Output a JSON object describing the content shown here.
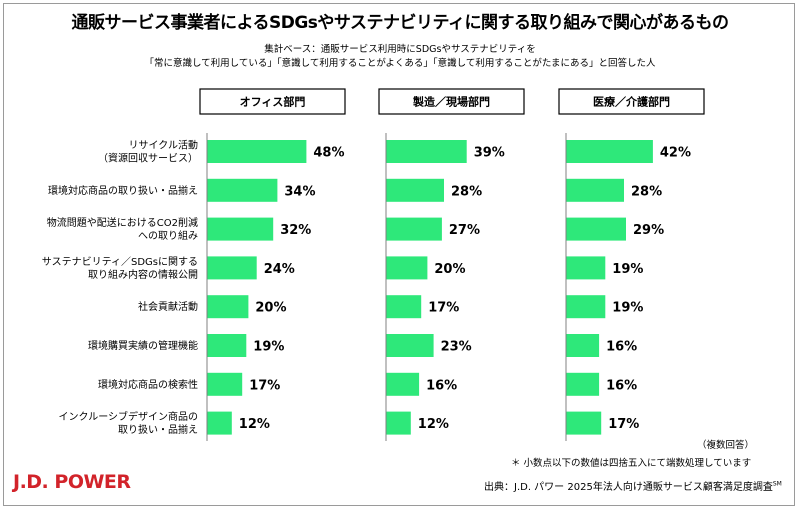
{
  "title": "通販サービス事業者によるSDGsやサステナビリティに関する取り組みで関心があるもの",
  "subtitle_line1": "集計ベース：通販サービス利用時にSDGsやサステナビリティを",
  "subtitle_line2": "「常に意識して利用している」「意識して利用することがよくある」「意識して利用することがたまにある」と回答した人",
  "multi_answer_note": "（複数回答）",
  "rounding_note": "＊ 小数点以下の数値は四捨五入にて端数処理しています",
  "source_prefix": "出典：J.D. パワー 2025年法人向け通販サービス顧客満足度調査",
  "source_sup": "SM",
  "logo_text": "J.D. POWER",
  "colors": {
    "bar": "#2ee87a",
    "logo": "#d2232a",
    "axis": "#808080"
  },
  "chart_data": [
    {
      "type": "bar",
      "orientation": "horizontal",
      "title": "オフィス部門",
      "categories": [
        "リサイクル活動\n（資源回収サービス）",
        "環境対応商品の取り扱い・品揃え",
        "物流問題や配送におけるCO2削減\nへの取り組み",
        "サステナビリティ／SDGsに関する\n取り組み内容の情報公開",
        "社会貢献活動",
        "環境購買実績の管理機能",
        "環境対応商品の検索性",
        "インクルーシブデザイン商品の\n取り扱い・品揃え"
      ],
      "values": [
        48,
        34,
        32,
        24,
        20,
        19,
        17,
        12
      ],
      "value_labels": [
        "48%",
        "34%",
        "32%",
        "24%",
        "20%",
        "19%",
        "17%",
        "12%"
      ]
    },
    {
      "type": "bar",
      "orientation": "horizontal",
      "title": "製造／現場部門",
      "values": [
        39,
        28,
        27,
        20,
        17,
        23,
        16,
        12
      ],
      "value_labels": [
        "39%",
        "28%",
        "27%",
        "20%",
        "17%",
        "23%",
        "16%",
        "12%"
      ]
    },
    {
      "type": "bar",
      "orientation": "horizontal",
      "title": "医療／介護部門",
      "values": [
        42,
        28,
        29,
        19,
        19,
        16,
        16,
        17
      ],
      "value_labels": [
        "42%",
        "28%",
        "29%",
        "19%",
        "19%",
        "16%",
        "16%",
        "17%"
      ]
    }
  ]
}
